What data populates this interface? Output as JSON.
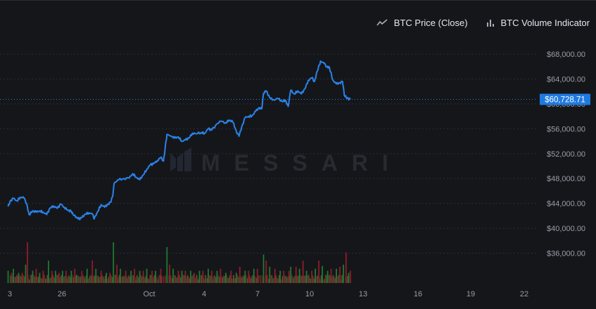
{
  "legend": {
    "price_label": "BTC Price (Close)",
    "price_icon": "line-chart-icon",
    "volume_label": "BTC Volume Indicator",
    "volume_icon": "bar-chart-icon"
  },
  "watermark": "MESSARI",
  "colors": {
    "background": "#15161a",
    "price_line": "#2a83e8",
    "last_price_tag": "#1f7ae0",
    "volume_up": "#1f7a2e",
    "volume_down": "#8f1c2c",
    "grid": "#2a2d35",
    "axis_text": "#9a9da6"
  },
  "chart_data": {
    "type": "line",
    "title": "",
    "xlabel": "",
    "ylabel": "",
    "ylim": [
      31200,
      70500
    ],
    "x_ticks": [
      "3",
      "26",
      "Oct",
      "4",
      "7",
      "10",
      "13",
      "16",
      "19",
      "22"
    ],
    "y_ticks": [
      "$68,000.00",
      "$64,000.00",
      "$60,000.00",
      "$56,000.00",
      "$52,000.00",
      "$48,000.00",
      "$44,000.00",
      "$40,000.00",
      "$36,000.00"
    ],
    "y_tick_values": [
      68000,
      64000,
      60000,
      56000,
      52000,
      48000,
      44000,
      40000,
      36000
    ],
    "last_price": 60728.71,
    "last_price_label": "$60,728.71",
    "grid": true,
    "legend_position": "top-right",
    "series": [
      {
        "name": "BTC Price (Close)",
        "points": [
          [
            -0.1,
            43500
          ],
          [
            0.0,
            44300
          ],
          [
            0.2,
            44800
          ],
          [
            0.4,
            44400
          ],
          [
            0.6,
            45000
          ],
          [
            0.8,
            44900
          ],
          [
            0.95,
            44000
          ],
          [
            1.1,
            42200
          ],
          [
            1.3,
            42800
          ],
          [
            1.5,
            42600
          ],
          [
            1.7,
            42800
          ],
          [
            1.9,
            42600
          ],
          [
            2.1,
            42200
          ],
          [
            2.3,
            43300
          ],
          [
            2.5,
            43600
          ],
          [
            2.7,
            43200
          ],
          [
            2.9,
            43900
          ],
          [
            3.1,
            43400
          ],
          [
            3.3,
            42900
          ],
          [
            3.5,
            42700
          ],
          [
            3.6,
            42200
          ],
          [
            3.8,
            41800
          ],
          [
            3.95,
            41500
          ],
          [
            4.1,
            41700
          ],
          [
            4.3,
            42300
          ],
          [
            4.5,
            42500
          ],
          [
            4.7,
            42300
          ],
          [
            4.8,
            41500
          ],
          [
            5.0,
            42700
          ],
          [
            5.2,
            43800
          ],
          [
            5.4,
            43400
          ],
          [
            5.6,
            43900
          ],
          [
            5.75,
            44200
          ],
          [
            5.85,
            45100
          ],
          [
            5.95,
            47300
          ],
          [
            6.2,
            47800
          ],
          [
            6.5,
            48000
          ],
          [
            6.8,
            48100
          ],
          [
            7.0,
            48800
          ],
          [
            7.2,
            48200
          ],
          [
            7.4,
            47800
          ],
          [
            7.6,
            48600
          ],
          [
            7.8,
            49500
          ],
          [
            8.0,
            50200
          ],
          [
            8.2,
            50400
          ],
          [
            8.4,
            50900
          ],
          [
            8.6,
            51400
          ],
          [
            8.75,
            50800
          ],
          [
            8.85,
            53000
          ],
          [
            8.95,
            55100
          ],
          [
            9.2,
            54800
          ],
          [
            9.4,
            54500
          ],
          [
            9.6,
            54700
          ],
          [
            9.8,
            54000
          ],
          [
            10.0,
            54200
          ],
          [
            10.2,
            54500
          ],
          [
            10.4,
            55300
          ],
          [
            10.6,
            55200
          ],
          [
            10.9,
            55400
          ],
          [
            11.1,
            55300
          ],
          [
            11.3,
            56000
          ],
          [
            11.5,
            55800
          ],
          [
            11.8,
            56800
          ],
          [
            12.0,
            57200
          ],
          [
            12.3,
            57000
          ],
          [
            12.5,
            57400
          ],
          [
            12.7,
            57100
          ],
          [
            12.9,
            55600
          ],
          [
            13.05,
            54800
          ],
          [
            13.2,
            56200
          ],
          [
            13.4,
            57800
          ],
          [
            13.6,
            58000
          ],
          [
            13.8,
            58100
          ],
          [
            14.0,
            58800
          ],
          [
            14.2,
            59400
          ],
          [
            14.35,
            59200
          ],
          [
            14.45,
            61700
          ],
          [
            14.6,
            62100
          ],
          [
            14.8,
            61000
          ],
          [
            15.0,
            60700
          ],
          [
            15.3,
            60800
          ],
          [
            15.5,
            60400
          ],
          [
            15.7,
            60600
          ],
          [
            15.85,
            59600
          ],
          [
            16.0,
            62200
          ],
          [
            16.2,
            61600
          ],
          [
            16.4,
            62100
          ],
          [
            16.6,
            61600
          ],
          [
            16.8,
            62400
          ],
          [
            17.0,
            63800
          ],
          [
            17.2,
            64200
          ],
          [
            17.35,
            63600
          ],
          [
            17.5,
            65200
          ],
          [
            17.7,
            66900
          ],
          [
            17.9,
            66500
          ],
          [
            18.05,
            66000
          ],
          [
            18.2,
            65900
          ],
          [
            18.4,
            63800
          ],
          [
            18.6,
            63200
          ],
          [
            18.8,
            63400
          ],
          [
            18.95,
            63600
          ],
          [
            19.05,
            61400
          ],
          [
            19.2,
            60900
          ],
          [
            19.4,
            60730
          ]
        ]
      },
      {
        "name": "BTC Volume Indicator",
        "up_bars": [
          [
            -0.1,
            0.3
          ],
          [
            0.2,
            0.35
          ],
          [
            0.5,
            0.25
          ],
          [
            0.9,
            0.45
          ],
          [
            1.3,
            0.3
          ],
          [
            1.7,
            0.25
          ],
          [
            2.2,
            0.55
          ],
          [
            2.6,
            0.3
          ],
          [
            3.0,
            0.3
          ],
          [
            3.5,
            0.3
          ],
          [
            3.8,
            0.2
          ],
          [
            4.4,
            0.35
          ],
          [
            4.9,
            0.35
          ],
          [
            5.5,
            0.25
          ],
          [
            5.9,
            1.0
          ],
          [
            6.3,
            0.35
          ],
          [
            6.9,
            0.3
          ],
          [
            7.4,
            0.3
          ],
          [
            7.8,
            0.35
          ],
          [
            8.3,
            0.3
          ],
          [
            8.95,
            0.88
          ],
          [
            9.3,
            0.35
          ],
          [
            9.8,
            0.3
          ],
          [
            10.3,
            0.3
          ],
          [
            10.8,
            0.3
          ],
          [
            11.3,
            0.35
          ],
          [
            11.8,
            0.3
          ],
          [
            12.3,
            0.25
          ],
          [
            12.9,
            0.25
          ],
          [
            13.4,
            0.3
          ],
          [
            13.9,
            0.35
          ],
          [
            14.45,
            0.7
          ],
          [
            14.8,
            0.4
          ],
          [
            15.4,
            0.3
          ],
          [
            16.0,
            0.4
          ],
          [
            16.5,
            0.35
          ],
          [
            16.9,
            0.3
          ],
          [
            17.4,
            0.35
          ],
          [
            17.8,
            0.42
          ],
          [
            18.1,
            0.3
          ],
          [
            18.6,
            0.35
          ],
          [
            19.0,
            0.45
          ],
          [
            19.3,
            0.25
          ]
        ],
        "down_bars": [
          [
            0.1,
            0.25
          ],
          [
            0.4,
            0.2
          ],
          [
            0.7,
            0.25
          ],
          [
            1.0,
            1.0
          ],
          [
            1.5,
            0.35
          ],
          [
            1.9,
            0.3
          ],
          [
            2.4,
            0.3
          ],
          [
            2.8,
            0.25
          ],
          [
            3.2,
            0.3
          ],
          [
            3.7,
            0.35
          ],
          [
            4.1,
            0.3
          ],
          [
            4.7,
            0.55
          ],
          [
            5.2,
            0.3
          ],
          [
            5.7,
            0.25
          ],
          [
            6.1,
            0.45
          ],
          [
            6.6,
            0.3
          ],
          [
            7.1,
            0.35
          ],
          [
            7.6,
            0.3
          ],
          [
            8.1,
            0.3
          ],
          [
            8.6,
            0.35
          ],
          [
            9.1,
            0.45
          ],
          [
            9.6,
            0.3
          ],
          [
            10.0,
            0.3
          ],
          [
            10.5,
            0.25
          ],
          [
            11.0,
            0.3
          ],
          [
            11.5,
            0.3
          ],
          [
            12.0,
            0.35
          ],
          [
            12.6,
            0.3
          ],
          [
            13.1,
            0.4
          ],
          [
            13.6,
            0.3
          ],
          [
            14.1,
            0.35
          ],
          [
            14.6,
            0.55
          ],
          [
            15.1,
            0.35
          ],
          [
            15.6,
            0.3
          ],
          [
            15.9,
            0.3
          ],
          [
            16.3,
            0.4
          ],
          [
            16.7,
            0.55
          ],
          [
            17.2,
            0.3
          ],
          [
            17.6,
            0.55
          ],
          [
            18.3,
            0.35
          ],
          [
            18.8,
            0.4
          ],
          [
            19.15,
            0.75
          ],
          [
            19.4,
            0.3
          ]
        ]
      }
    ]
  }
}
